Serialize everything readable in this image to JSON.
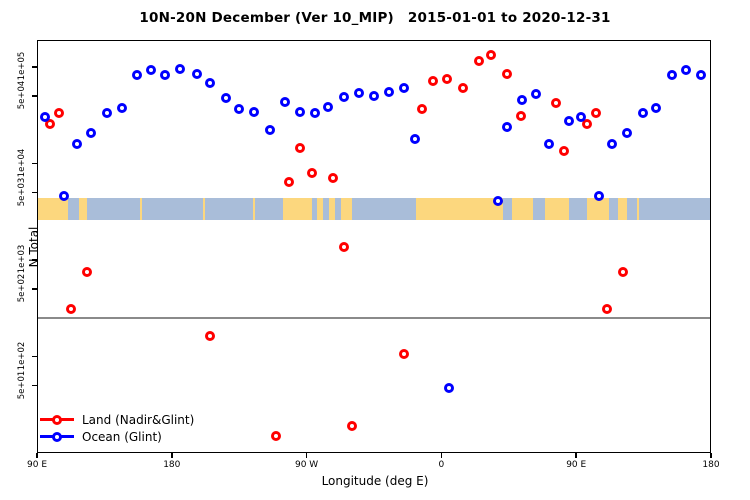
{
  "title": {
    "main": "10N-20N December (Ver 10_MIP)",
    "dates": "2015-01-01 to 2020-12-31"
  },
  "chart_data": {
    "type": "scatter",
    "xlabel": "Longitude (deg E)",
    "ylabel": "N Total",
    "x_axis": {
      "span_display_deg": 450,
      "ticks": [
        {
          "deg": 0,
          "label": "90 E"
        },
        {
          "deg": 90,
          "label": "180"
        },
        {
          "deg": 180,
          "label": "90 W"
        },
        {
          "deg": 270,
          "label": "0"
        },
        {
          "deg": 360,
          "label": "90 E"
        },
        {
          "deg": 450,
          "label": "180"
        }
      ]
    },
    "y_axis": {
      "scale": "log",
      "ylim": [
        10,
        190000
      ],
      "ticks": [
        {
          "v": 100000,
          "label": "1e+05"
        },
        {
          "v": 50000,
          "label": "5e+04"
        },
        {
          "v": 10000,
          "label": "1e+04"
        },
        {
          "v": 5000,
          "label": "5e+03"
        },
        {
          "v": 1000,
          "label": "1e+03"
        },
        {
          "v": 500,
          "label": "5e+02"
        },
        {
          "v": 100,
          "label": "1e+02"
        },
        {
          "v": 50,
          "label": "5e+01"
        }
      ]
    },
    "reference_line": {
      "value": 250,
      "color": "#8a8a8a"
    },
    "map_strip": {
      "value_top": 4400,
      "value_bottom": 2600,
      "ocean_color": "#a9bdd9",
      "land_color": "#fcd77e",
      "land_segments_deg": [
        [
          0,
          20.5
        ],
        [
          28,
          33.5
        ],
        [
          68.5,
          70
        ],
        [
          110.5,
          112
        ],
        [
          144,
          145.5
        ],
        [
          164,
          183.5
        ],
        [
          187,
          191
        ],
        [
          195,
          199
        ],
        [
          203,
          210
        ],
        [
          253,
          311
        ],
        [
          317,
          331.5
        ],
        [
          339,
          355.5
        ],
        [
          367,
          382
        ],
        [
          388,
          394
        ],
        [
          400.5,
          402
        ]
      ]
    },
    "series": [
      {
        "name": "Land (Nadir&Glint)",
        "color": "#ff0000",
        "points": [
          {
            "deg": 8.7,
            "v": 25400
          },
          {
            "deg": 14.7,
            "v": 33100
          },
          {
            "deg": 22.7,
            "v": 310
          },
          {
            "deg": 33.3,
            "v": 751
          },
          {
            "deg": 115.3,
            "v": 163
          },
          {
            "deg": 159.3,
            "v": 15
          },
          {
            "deg": 168,
            "v": 6430
          },
          {
            "deg": 175.3,
            "v": 14500
          },
          {
            "deg": 183.3,
            "v": 7980
          },
          {
            "deg": 197.3,
            "v": 7080
          },
          {
            "deg": 204.7,
            "v": 1365
          },
          {
            "deg": 210,
            "v": 19
          },
          {
            "deg": 245.3,
            "v": 106
          },
          {
            "deg": 257.3,
            "v": 36700
          },
          {
            "deg": 264.7,
            "v": 71600
          },
          {
            "deg": 274,
            "v": 75100
          },
          {
            "deg": 284.7,
            "v": 60500
          },
          {
            "deg": 295.3,
            "v": 115400
          },
          {
            "deg": 303.3,
            "v": 133000
          },
          {
            "deg": 314,
            "v": 84500
          },
          {
            "deg": 323.3,
            "v": 31000
          },
          {
            "deg": 346.7,
            "v": 42400
          },
          {
            "deg": 352,
            "v": 13500
          },
          {
            "deg": 367.3,
            "v": 25400
          },
          {
            "deg": 373.3,
            "v": 33100
          },
          {
            "deg": 380.7,
            "v": 310
          },
          {
            "deg": 391.3,
            "v": 751
          }
        ]
      },
      {
        "name": "Ocean (Glint)",
        "color": "#0000ff",
        "points": [
          {
            "deg": 5.3,
            "v": 30400
          },
          {
            "deg": 18,
            "v": 4600
          },
          {
            "deg": 26.7,
            "v": 15900
          },
          {
            "deg": 36,
            "v": 20700
          },
          {
            "deg": 46.7,
            "v": 33300
          },
          {
            "deg": 56.7,
            "v": 37600
          },
          {
            "deg": 66.7,
            "v": 82600
          },
          {
            "deg": 76,
            "v": 93100
          },
          {
            "deg": 85.3,
            "v": 82600
          },
          {
            "deg": 95.3,
            "v": 95300
          },
          {
            "deg": 106.7,
            "v": 84500
          },
          {
            "deg": 115.3,
            "v": 68200
          },
          {
            "deg": 126,
            "v": 47600
          },
          {
            "deg": 134.7,
            "v": 36700
          },
          {
            "deg": 144.7,
            "v": 34200
          },
          {
            "deg": 155.3,
            "v": 22200
          },
          {
            "deg": 165.3,
            "v": 43300
          },
          {
            "deg": 175.3,
            "v": 34200
          },
          {
            "deg": 185.3,
            "v": 33300
          },
          {
            "deg": 194,
            "v": 38500
          },
          {
            "deg": 204.7,
            "v": 48900
          },
          {
            "deg": 214.7,
            "v": 53800
          },
          {
            "deg": 224.7,
            "v": 50000
          },
          {
            "deg": 234.7,
            "v": 55100
          },
          {
            "deg": 244.7,
            "v": 60500
          },
          {
            "deg": 252.7,
            "v": 17900
          },
          {
            "deg": 275,
            "v": 47
          },
          {
            "deg": 308,
            "v": 4090
          },
          {
            "deg": 314,
            "v": 23900
          },
          {
            "deg": 324,
            "v": 45500
          },
          {
            "deg": 333.3,
            "v": 53100
          },
          {
            "deg": 342,
            "v": 15900
          },
          {
            "deg": 355.3,
            "v": 27500
          },
          {
            "deg": 363.3,
            "v": 30400
          },
          {
            "deg": 375.3,
            "v": 4600
          },
          {
            "deg": 384,
            "v": 15900
          },
          {
            "deg": 394,
            "v": 20700
          },
          {
            "deg": 404.7,
            "v": 33300
          },
          {
            "deg": 413.3,
            "v": 37600
          },
          {
            "deg": 424,
            "v": 82600
          },
          {
            "deg": 433.3,
            "v": 93100
          },
          {
            "deg": 443.3,
            "v": 82600
          }
        ]
      }
    ]
  },
  "legend": {
    "items": [
      {
        "label": "Land (Nadir&Glint)",
        "color": "#ff0000"
      },
      {
        "label": "Ocean (Glint)",
        "color": "#0000ff"
      }
    ]
  }
}
